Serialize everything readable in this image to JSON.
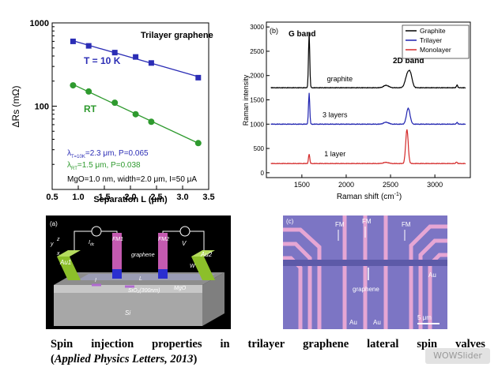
{
  "chart_data": [
    {
      "type": "scatter",
      "panel": "",
      "xlabel": "Separation L (μm)",
      "ylabel": "ΔRs (mΩ)",
      "xlim": [
        0.5,
        3.5
      ],
      "ylim": [
        10,
        1000
      ],
      "yscale": "log",
      "xticks": [
        "0.5",
        "1.0",
        "1.5",
        "2.0",
        "2.5",
        "3.0",
        "3.5"
      ],
      "yticks": [
        "100",
        "1000"
      ],
      "legend_title": "Trilayer graphene",
      "series": [
        {
          "name": "T = 10 K",
          "color": "#2b2db5",
          "marker": "square",
          "x": [
            0.9,
            1.2,
            1.7,
            2.1,
            2.4,
            3.3
          ],
          "y": [
            600,
            530,
            440,
            390,
            330,
            220
          ]
        },
        {
          "name": "RT",
          "color": "#2e9a2e",
          "marker": "circle",
          "x": [
            0.9,
            1.2,
            1.7,
            2.1,
            2.4,
            3.3
          ],
          "y": [
            178,
            150,
            110,
            80,
            65,
            36
          ]
        }
      ],
      "annotations": {
        "lambda_10k_sym": "λ",
        "lambda_10k_sub": "T=10K",
        "lambda_10k_text": "=2.3 μm, P=0.065",
        "lambda_rt_sym": "λ",
        "lambda_rt_sub": "RT",
        "lambda_rt_text": "=1.5 μm, P=0.038",
        "conditions": "MgO=1.0 nm, width=2.0 μm, I=50 μA"
      },
      "grid": false
    },
    {
      "type": "line",
      "panel": "(b)",
      "xlabel_main": "Raman shift (cm",
      "xlabel_sup": "-1",
      "xlabel_end": ")",
      "ylabel": "Raman intensity",
      "xlim": [
        1100,
        3400
      ],
      "ylim": [
        -100,
        3100
      ],
      "xticks": [
        "1500",
        "2000",
        "2500",
        "3000"
      ],
      "yticks": [
        "0",
        "500",
        "1000",
        "1500",
        "2000",
        "2500",
        "3000"
      ],
      "legend": {
        "placement": "top-right"
      },
      "peak_labels": {
        "g_band": "G band",
        "band_2d": "2D band"
      },
      "series": [
        {
          "name": "Graphite",
          "color": "#000000",
          "baseline": 1750,
          "trace_label": "graphite",
          "peaks": [
            [
              1582,
              1130,
              10
            ],
            [
              2450,
              50,
              40
            ],
            [
              2690,
              250,
              35
            ],
            [
              2725,
              230,
              30
            ],
            [
              3250,
              60,
              10
            ]
          ]
        },
        {
          "name": "Trilayer",
          "color": "#1f23b0",
          "baseline": 1000,
          "trace_label": "3 layers",
          "peaks": [
            [
              1582,
              650,
              10
            ],
            [
              2450,
              40,
              40
            ],
            [
              2700,
              330,
              28
            ],
            [
              3250,
              40,
              10
            ]
          ]
        },
        {
          "name": "Monolayer",
          "color": "#d42a2a",
          "baseline": 190,
          "trace_label": "1 layer",
          "peaks": [
            [
              1582,
              200,
              10
            ],
            [
              2450,
              25,
              40
            ],
            [
              2685,
              700,
              20
            ],
            [
              3245,
              35,
              10
            ]
          ]
        }
      ]
    }
  ],
  "device_image": {
    "panel": "(a)",
    "labels": {
      "au1": "Au1",
      "au2": "Au2",
      "fm1": "FM1",
      "fm2": "FM2",
      "graphene": "graphene",
      "mgo": "MgO",
      "sio2": "SiO₂(300nm)",
      "si": "Si",
      "w": "W",
      "l": "L",
      "i": "I",
      "i_dc": "I",
      "i_dc_sub": "dc",
      "v": "V",
      "axis_y": "y",
      "axis_x": "x",
      "axis_z": "z"
    },
    "colors": {
      "au": "#8cbf2a",
      "fm": "#c45ab0",
      "graphene": "#9a9cb4",
      "mgo": "#2b2fd0",
      "substrate": "#a7a7a7"
    }
  },
  "micrograph": {
    "panel": "(c)",
    "labels": {
      "fm_left": "FM",
      "fm_mid": "FM",
      "fm_right": "FM",
      "graphene": "graphene",
      "au_right": "Au",
      "au_bottom_left": "Au",
      "au_bottom_right": "Au",
      "scale": "5 μm"
    },
    "colors": {
      "background": "#7c75c4",
      "pads": "#e6a6d4"
    }
  },
  "caption": {
    "line1_words": [
      "Spin",
      "injection",
      "properties",
      "in",
      "trilayer",
      "graphene",
      "lateral",
      "spin",
      "valves"
    ],
    "open": "(",
    "journal": "Applied Physics Letters, 2013",
    "close": ")"
  },
  "watermark": {
    "part1": "WOW",
    "part2": "Slider"
  }
}
